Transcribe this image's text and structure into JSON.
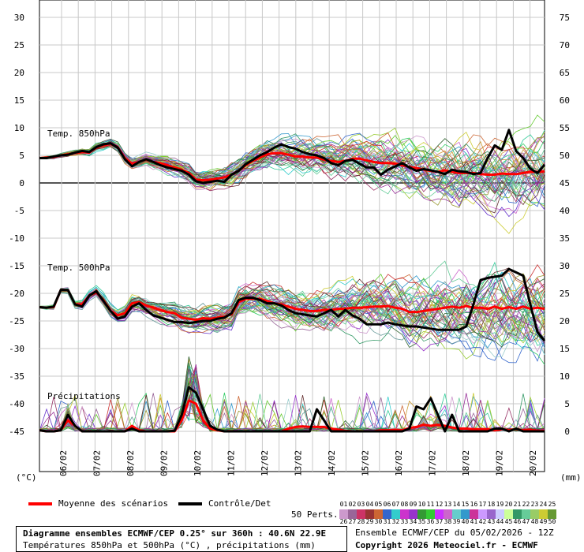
{
  "panels": {
    "t850_label": "Temp. 850hPa",
    "t500_label": "Temp. 500hPa",
    "precip_label": "Précipitations"
  },
  "axes": {
    "left_unit": "(°C)",
    "right_unit": "(mm)",
    "left_ticks": [
      30,
      25,
      20,
      15,
      10,
      5,
      0,
      -5,
      -10,
      -15,
      -20,
      -25,
      -30,
      -35,
      -40,
      -45
    ],
    "right_ticks": [
      75,
      70,
      65,
      60,
      55,
      50,
      45,
      40,
      35,
      30,
      25,
      20,
      15,
      10,
      5,
      0
    ],
    "date_labels": [
      "06/02",
      "07/02",
      "08/02",
      "09/02",
      "10/02",
      "11/02",
      "12/02",
      "13/02",
      "14/02",
      "15/02",
      "16/02",
      "17/02",
      "18/02",
      "19/02",
      "20/02"
    ]
  },
  "legend": {
    "mean_label": "Moyenne des scénarios",
    "control_label": "Contrôle/Det",
    "perts_label": "50 Perts.",
    "mean_color": "#ff0000",
    "control_color": "#000000",
    "pert_numbers_row1": [
      "01",
      "02",
      "03",
      "04",
      "05",
      "06",
      "07",
      "08",
      "09",
      "10",
      "11",
      "12",
      "13",
      "14",
      "15",
      "16",
      "17",
      "18",
      "19",
      "20",
      "21",
      "22",
      "23",
      "24",
      "25"
    ],
    "pert_numbers_row2": [
      "26",
      "27",
      "28",
      "29",
      "30",
      "31",
      "32",
      "33",
      "34",
      "35",
      "36",
      "37",
      "38",
      "39",
      "40",
      "41",
      "42",
      "43",
      "44",
      "45",
      "46",
      "47",
      "48",
      "49",
      "50"
    ]
  },
  "info": {
    "title": "Diagramme ensembles ECMWF/CEP 0.25° sur 360h : 40.6N 22.9E",
    "subtitle": "Températures 850hPa et 500hPa (°C) , précipitations (mm)",
    "run": "Ensemble ECMWF/CEP du 05/02/2026 - 12Z",
    "copyright": "Copyright 2026 Meteociel.fr - ECMWF"
  },
  "chart_data": {
    "type": "line",
    "time_step_hours": 6,
    "x_labels": [
      "06/02",
      "07/02",
      "08/02",
      "09/02",
      "10/02",
      "11/02",
      "12/02",
      "13/02",
      "14/02",
      "15/02",
      "16/02",
      "17/02",
      "18/02",
      "19/02",
      "20/02"
    ],
    "ylim_left": [
      -50,
      30
    ],
    "ylim_right": [
      0,
      75
    ],
    "series": [
      {
        "name": "Moyenne des scénarios",
        "panel": "Temp. 850hPa",
        "values": [
          4.5,
          4.6,
          4.7,
          5,
          5.2,
          5.4,
          5.6,
          5.5,
          6.4,
          6.8,
          7.1,
          6.5,
          4.5,
          3.5,
          3.8,
          4.2,
          3.8,
          3.6,
          3.2,
          2.8,
          2.4,
          1.8,
          0.6,
          0.5,
          0.6,
          0.8,
          1,
          1.5,
          2.2,
          3.2,
          4,
          4.6,
          5.2,
          5.4,
          5.4,
          5.1,
          4.8,
          4.8,
          4.6,
          4.6,
          4.2,
          4,
          3.8,
          4,
          4.4,
          4.4,
          4.1,
          3.8,
          3.6,
          3.6,
          3.5,
          3.2,
          2.9,
          2.7,
          2.4,
          2.2,
          2,
          2.3,
          2,
          1.8,
          1.8,
          1.8,
          1.6,
          1.5,
          1.5,
          1.7,
          1.6,
          1.6,
          1.8,
          2,
          2,
          2.1
        ]
      },
      {
        "name": "Contrôle/Det",
        "panel": "Temp. 850hPa",
        "values": [
          4.5,
          4.5,
          4.8,
          5,
          5.1,
          5.5,
          5.8,
          5.6,
          6.5,
          7,
          7.2,
          6.4,
          4.3,
          3,
          3.8,
          4.3,
          3.8,
          3.2,
          2.8,
          2.5,
          2.2,
          1.5,
          0.3,
          0,
          0.2,
          0.4,
          0.2,
          1.5,
          2.2,
          3.4,
          4.2,
          5,
          5.6,
          6.4,
          7,
          6.5,
          6.2,
          5.6,
          5.2,
          5,
          4.5,
          3.6,
          3.2,
          4,
          4.2,
          3.5,
          2.8,
          2.8,
          1.5,
          2.4,
          3,
          3.6,
          2.8,
          2.2,
          2.5,
          2.3,
          2,
          1.6,
          2.4,
          2.1,
          2,
          1.6,
          1.8,
          4.5,
          6.8,
          6,
          9.6,
          5.8,
          4.5,
          2.6,
          1.8,
          3.3
        ]
      },
      {
        "name": "Moyenne des scénarios",
        "panel": "Temp. 500hPa",
        "values": [
          -22.5,
          -22.6,
          -22.5,
          -19.4,
          -19.4,
          -22,
          -22,
          -20.4,
          -19.8,
          -21.2,
          -23.2,
          -24,
          -23.6,
          -21.8,
          -21.6,
          -22.2,
          -22.6,
          -23,
          -23.4,
          -23.6,
          -24.4,
          -24.6,
          -24.8,
          -24.5,
          -24.6,
          -24.4,
          -24.2,
          -23.8,
          -21.6,
          -21,
          -21,
          -21,
          -21.4,
          -21.8,
          -22,
          -22.4,
          -22.8,
          -23,
          -23.2,
          -23.2,
          -23,
          -23,
          -22.8,
          -22.8,
          -22.6,
          -22.6,
          -22.5,
          -22.4,
          -22.4,
          -22.3,
          -22.6,
          -22.8,
          -23.4,
          -23.4,
          -23.2,
          -23,
          -22.8,
          -22.6,
          -22.4,
          -22.6,
          -22.3,
          -22.6,
          -22.6,
          -22.8,
          -22.4,
          -22.8,
          -22.5,
          -22.8,
          -22.4,
          -22.8,
          -22.6,
          -22.8
        ]
      },
      {
        "name": "Contrôle/Det",
        "panel": "Temp. 500hPa",
        "values": [
          -22.5,
          -22.6,
          -22.4,
          -19.4,
          -19.4,
          -22,
          -22.4,
          -20.4,
          -19.6,
          -21.4,
          -23.2,
          -24.6,
          -24.2,
          -22.4,
          -21.8,
          -23,
          -24,
          -24.4,
          -24.8,
          -25.2,
          -25.2,
          -25.4,
          -25.2,
          -25,
          -25,
          -24.6,
          -24.4,
          -23.6,
          -21.2,
          -20.8,
          -20.8,
          -21.2,
          -21.8,
          -21.8,
          -22.2,
          -23,
          -23.6,
          -23.8,
          -24,
          -24.2,
          -23.6,
          -23,
          -24.2,
          -23,
          -24,
          -24.6,
          -25.6,
          -25.6,
          -25.6,
          -25.3,
          -25.6,
          -25.8,
          -26,
          -26,
          -26.2,
          -26.4,
          -26.6,
          -26.6,
          -26.6,
          -26.6,
          -26,
          -22,
          -17.6,
          -17.2,
          -17,
          -16.8,
          -15.6,
          -16.2,
          -16.8,
          -22,
          -27,
          -28.6
        ]
      },
      {
        "name": "Moyenne des scénarios",
        "panel": "Précipitations",
        "values": [
          0.2,
          0,
          0,
          0.2,
          2,
          1,
          0,
          0,
          0,
          0,
          0,
          0,
          0,
          1,
          0.2,
          0,
          0,
          0,
          0,
          0,
          2,
          5.6,
          5,
          2,
          0.5,
          0.2,
          0,
          0,
          0,
          0,
          0,
          0,
          0,
          0,
          0,
          0.5,
          0.8,
          0.9,
          0.8,
          0.8,
          0.8,
          0.5,
          0.3,
          0.1,
          0,
          0,
          0,
          0,
          0.2,
          0.2,
          0.3,
          0.2,
          0.6,
          0.8,
          1.2,
          1,
          1.2,
          1,
          0.7,
          0.5,
          0.5,
          0.4,
          0.4,
          0.4,
          0.2,
          0.4,
          0.2,
          0.4,
          0.2,
          0.3,
          0.1,
          0.1
        ]
      },
      {
        "name": "Contrôle/Det",
        "panel": "Précipitations",
        "values": [
          0.2,
          0,
          0,
          0.2,
          3,
          1,
          0,
          0,
          0,
          0,
          0,
          0,
          0,
          0.5,
          0,
          0,
          0,
          0,
          0,
          0.1,
          3,
          8,
          7,
          4,
          1,
          0.3,
          0,
          0,
          0,
          0,
          0,
          0,
          0,
          0,
          0,
          0,
          0,
          0,
          0,
          4,
          2,
          0,
          0,
          0,
          0,
          0,
          0,
          0,
          0,
          0,
          0,
          0,
          0.5,
          4.5,
          4,
          6,
          3,
          0,
          3,
          0,
          0,
          0,
          0,
          0,
          0.5,
          0.5,
          0,
          0.5,
          0,
          0,
          0,
          0
        ]
      }
    ]
  }
}
